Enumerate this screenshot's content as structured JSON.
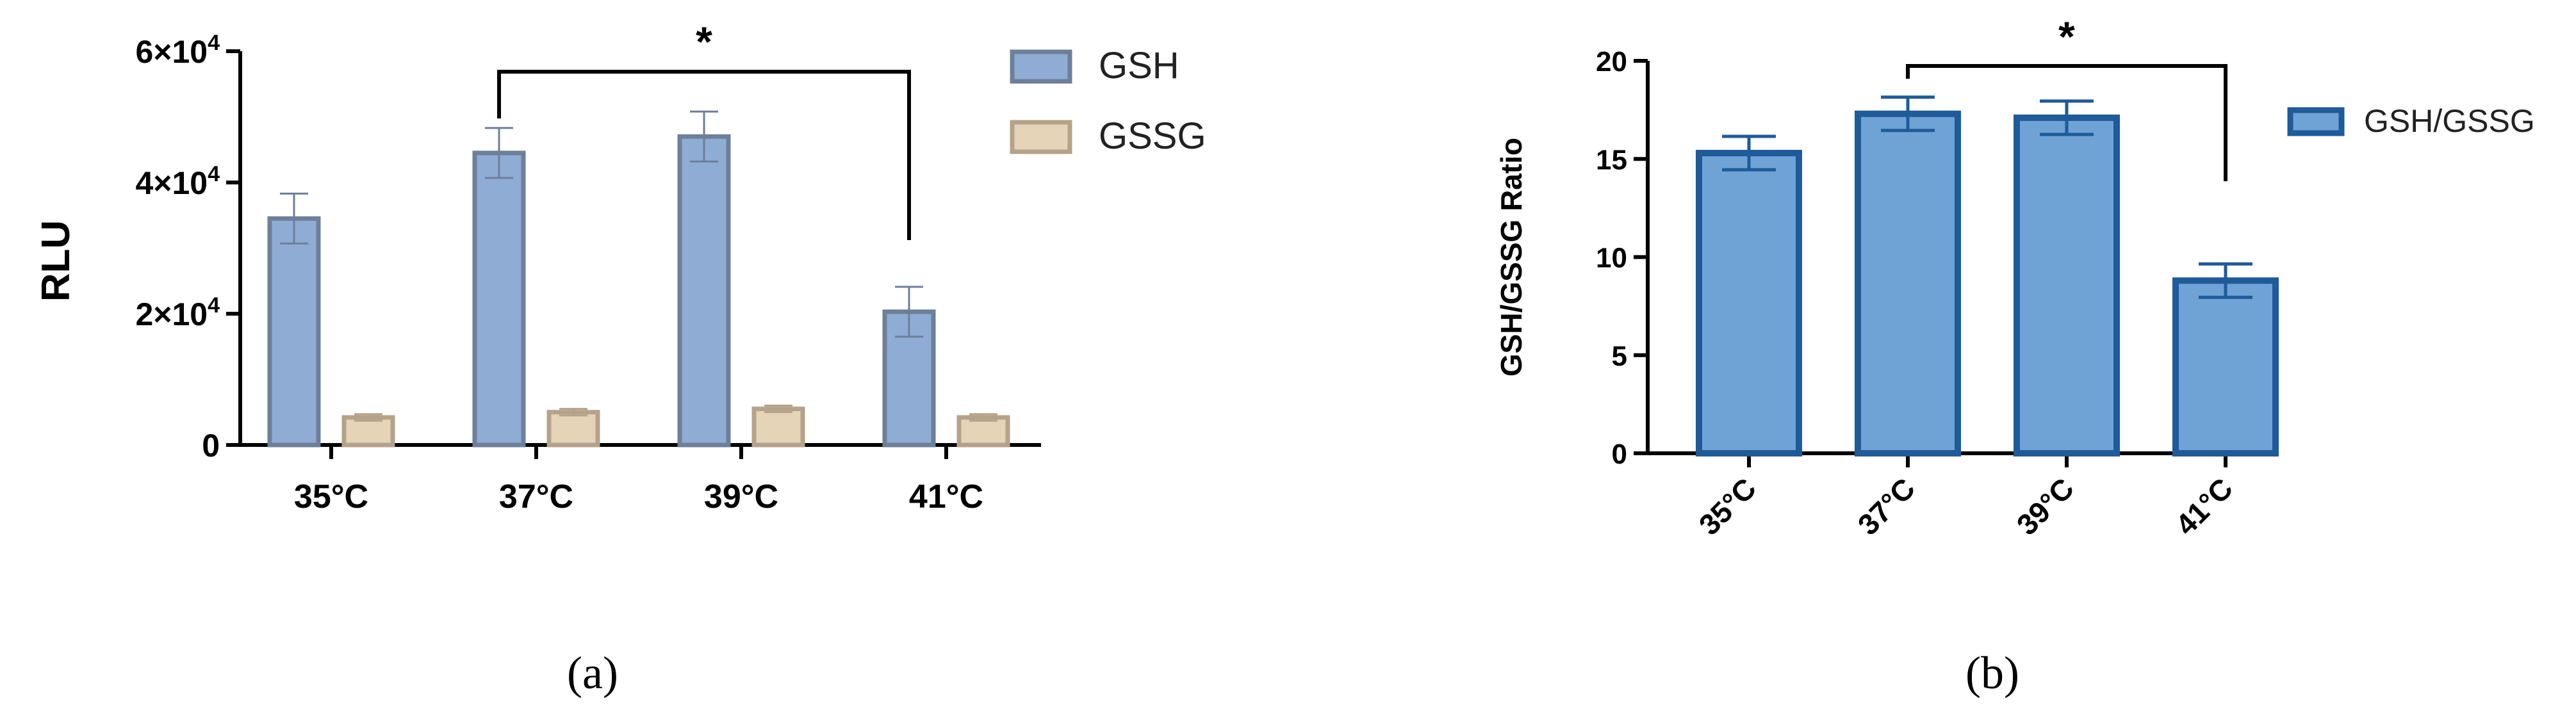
{
  "chart_data": [
    {
      "panel": "a",
      "type": "bar",
      "ylabel": "RLU",
      "ylim": [
        0,
        60000
      ],
      "yticks": [
        {
          "value": 0,
          "label": "0"
        },
        {
          "value": 20000,
          "mantissa": "2",
          "exponent": "4"
        },
        {
          "value": 40000,
          "mantissa": "4",
          "exponent": "4"
        },
        {
          "value": 60000,
          "mantissa": "6",
          "exponent": "4"
        }
      ],
      "categories": [
        "35°C",
        "37°C",
        "39°C",
        "41°C"
      ],
      "series": [
        {
          "name": "GSH",
          "values": [
            34500,
            44500,
            47000,
            20300
          ],
          "errors": [
            3800,
            3800,
            3800,
            3800
          ],
          "color": "#8facd4",
          "stroke": "#6d7f99"
        },
        {
          "name": "GSSG",
          "values": [
            4200,
            5000,
            5500,
            4200
          ],
          "errors": [
            500,
            500,
            500,
            500
          ],
          "color": "#e6d4b8",
          "stroke": "#b5a28a"
        }
      ],
      "significance": {
        "from_category": 1,
        "to_category": 3,
        "label": "*"
      },
      "legend_position": "right",
      "grid": false,
      "caption": "(a)"
    },
    {
      "panel": "b",
      "type": "bar",
      "ylabel": "GSH/GSSG Ratio",
      "ylim": [
        0,
        20
      ],
      "yticks": [
        {
          "value": 0,
          "label": "0"
        },
        {
          "value": 5,
          "label": "5"
        },
        {
          "value": 10,
          "label": "10"
        },
        {
          "value": 15,
          "label": "15"
        },
        {
          "value": 20,
          "label": "20"
        }
      ],
      "categories": [
        "35°C",
        "37°C",
        "39°C",
        "41°C"
      ],
      "series": [
        {
          "name": "GSH/GSSG",
          "values": [
            15.3,
            17.3,
            17.1,
            8.8
          ],
          "errors": [
            0.85,
            0.85,
            0.85,
            0.85
          ],
          "color": "#6fa3d6",
          "stroke": "#1f5a99"
        }
      ],
      "significance": {
        "from_category": 1,
        "to_category": 3,
        "label": "*"
      },
      "legend_position": "right",
      "grid": false,
      "caption": "(b)"
    }
  ]
}
